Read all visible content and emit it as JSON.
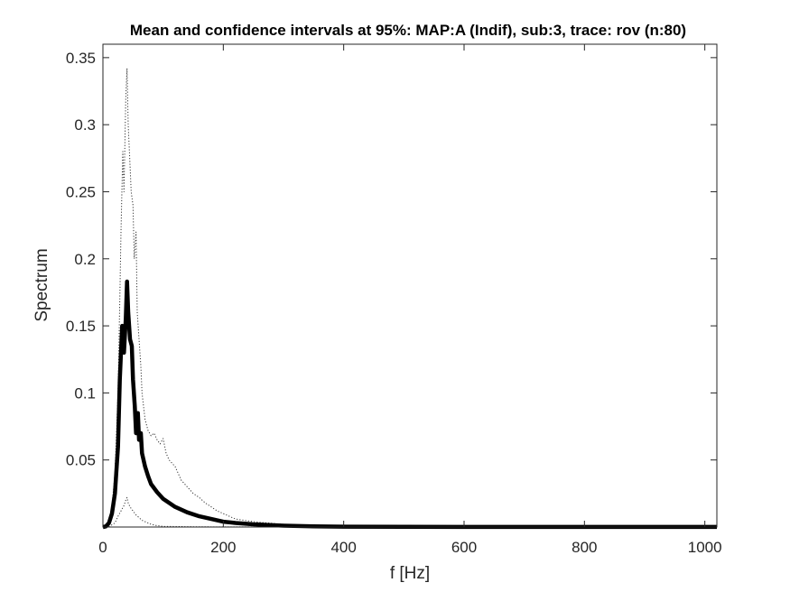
{
  "chart_data": {
    "type": "line",
    "title": "Mean and confidence intervals at 95%: MAP:A (Indif), sub:3, trace: rov (n:80)",
    "xlabel": "f [Hz]",
    "ylabel": "Spectrum",
    "xlim": [
      0,
      1020
    ],
    "ylim": [
      0,
      0.36
    ],
    "xticks": [
      0,
      200,
      400,
      600,
      800,
      1000
    ],
    "xtick_labels": [
      "0",
      "200",
      "400",
      "600",
      "800",
      "1000"
    ],
    "yticks": [
      0.05,
      0.1,
      0.15,
      0.2,
      0.25,
      0.3,
      0.35
    ],
    "ytick_labels": [
      "0.05",
      "0.1",
      "0.15",
      "0.2",
      "0.25",
      "0.3",
      "0.35"
    ],
    "grid": false,
    "series": [
      {
        "role": "mean",
        "style": "solid-thick",
        "color": "#000000",
        "x": [
          0,
          5,
          10,
          15,
          20,
          25,
          28,
          32,
          35,
          38,
          40,
          42,
          45,
          48,
          50,
          53,
          55,
          58,
          60,
          63,
          65,
          70,
          75,
          80,
          90,
          100,
          120,
          140,
          160,
          180,
          200,
          220,
          250,
          300,
          350,
          400,
          500,
          600,
          800,
          1020
        ],
        "y": [
          0,
          0.0005,
          0.003,
          0.01,
          0.025,
          0.06,
          0.11,
          0.15,
          0.13,
          0.155,
          0.183,
          0.16,
          0.14,
          0.135,
          0.11,
          0.09,
          0.07,
          0.085,
          0.065,
          0.07,
          0.055,
          0.045,
          0.038,
          0.032,
          0.026,
          0.021,
          0.015,
          0.011,
          0.008,
          0.006,
          0.004,
          0.003,
          0.002,
          0.001,
          0.0005,
          0.0003,
          0.0002,
          0.0001,
          0.0001,
          0.0001
        ]
      },
      {
        "role": "upper-95",
        "style": "dotted",
        "color": "#333333",
        "x": [
          0,
          5,
          10,
          15,
          20,
          25,
          28,
          30,
          33,
          35,
          38,
          40,
          42,
          45,
          47,
          50,
          52,
          55,
          57,
          60,
          63,
          65,
          70,
          75,
          80,
          85,
          90,
          95,
          100,
          105,
          110,
          120,
          130,
          140,
          150,
          160,
          170,
          180,
          190,
          200,
          220,
          250,
          300,
          350,
          400,
          500,
          600,
          800,
          1020
        ],
        "y": [
          0,
          0.0008,
          0.005,
          0.015,
          0.04,
          0.1,
          0.17,
          0.22,
          0.28,
          0.25,
          0.32,
          0.342,
          0.3,
          0.27,
          0.25,
          0.24,
          0.2,
          0.22,
          0.16,
          0.14,
          0.12,
          0.1,
          0.08,
          0.072,
          0.068,
          0.07,
          0.065,
          0.062,
          0.066,
          0.055,
          0.05,
          0.045,
          0.035,
          0.03,
          0.025,
          0.022,
          0.018,
          0.015,
          0.012,
          0.01,
          0.006,
          0.004,
          0.002,
          0.001,
          0.0006,
          0.0004,
          0.0002,
          0.0001,
          0.0001
        ]
      },
      {
        "role": "lower-95",
        "style": "dotted",
        "color": "#333333",
        "x": [
          0,
          10,
          20,
          25,
          30,
          35,
          38,
          40,
          42,
          45,
          50,
          55,
          60,
          65,
          70,
          80,
          90,
          100,
          150,
          200,
          300,
          500,
          1020
        ],
        "y": [
          0,
          0.0003,
          0.003,
          0.008,
          0.012,
          0.016,
          0.02,
          0.022,
          0.018,
          0.015,
          0.012,
          0.009,
          0.007,
          0.005,
          0.004,
          0.002,
          0.001,
          0.0005,
          0.0002,
          0.0001,
          0.0001,
          0.0001,
          0.0001
        ]
      }
    ]
  }
}
